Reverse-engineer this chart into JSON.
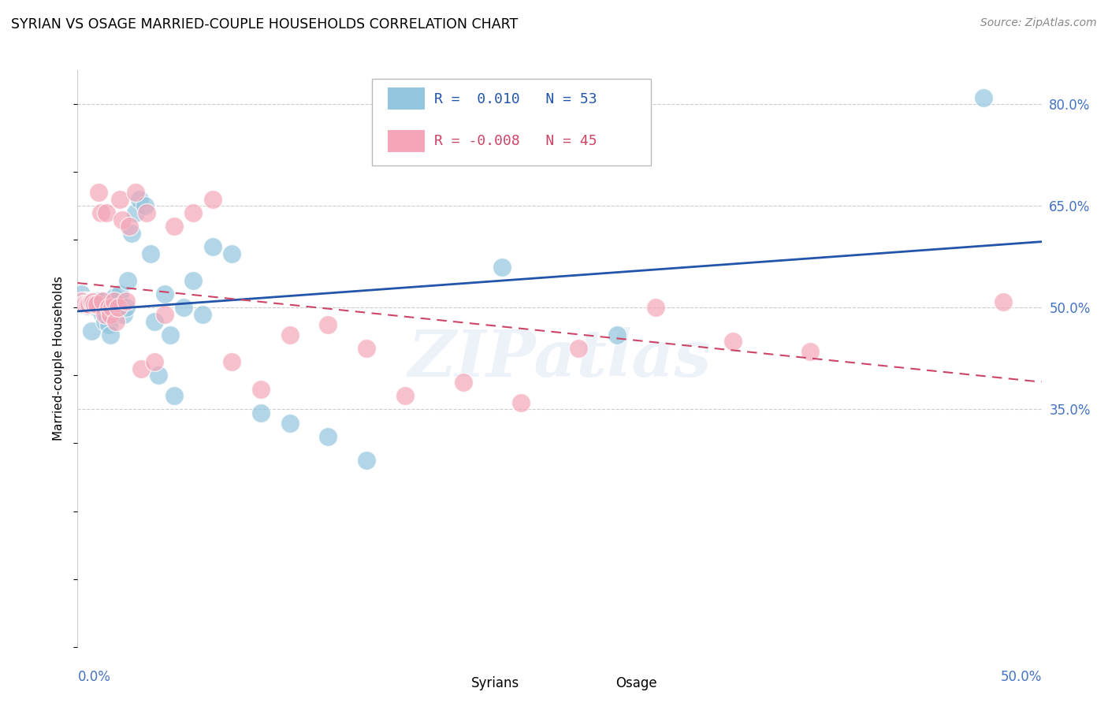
{
  "title": "SYRIAN VS OSAGE MARRIED-COUPLE HOUSEHOLDS CORRELATION CHART",
  "source": "Source: ZipAtlas.com",
  "ylabel": "Married-couple Households",
  "xlim": [
    0.0,
    0.5
  ],
  "ylim": [
    0.0,
    0.85
  ],
  "yticks": [
    0.35,
    0.5,
    0.65,
    0.8
  ],
  "ytick_labels": [
    "35.0%",
    "50.0%",
    "65.0%",
    "80.0%"
  ],
  "watermark": "ZIPatlas",
  "legend_blue_r": "0.010",
  "legend_blue_n": "53",
  "legend_pink_r": "-0.008",
  "legend_pink_n": "45",
  "blue_color": "#92C5DE",
  "pink_color": "#F4A6B8",
  "trendline_blue_color": "#2255AA",
  "trendline_pink_color": "#CC4466",
  "blue_x": [
    0.002,
    0.003,
    0.004,
    0.004,
    0.005,
    0.005,
    0.006,
    0.006,
    0.007,
    0.007,
    0.008,
    0.008,
    0.009,
    0.009,
    0.01,
    0.01,
    0.011,
    0.012,
    0.013,
    0.013,
    0.014,
    0.015,
    0.016,
    0.017,
    0.018,
    0.019,
    0.02,
    0.022,
    0.024,
    0.025,
    0.026,
    0.028,
    0.03,
    0.032,
    0.035,
    0.038,
    0.04,
    0.042,
    0.045,
    0.048,
    0.05,
    0.055,
    0.06,
    0.065,
    0.07,
    0.08,
    0.095,
    0.11,
    0.13,
    0.15,
    0.22,
    0.28,
    0.47
  ],
  "blue_y": [
    0.52,
    0.51,
    0.51,
    0.505,
    0.51,
    0.503,
    0.51,
    0.505,
    0.465,
    0.51,
    0.51,
    0.503,
    0.51,
    0.51,
    0.51,
    0.5,
    0.51,
    0.5,
    0.51,
    0.49,
    0.48,
    0.49,
    0.475,
    0.46,
    0.51,
    0.515,
    0.5,
    0.52,
    0.49,
    0.5,
    0.54,
    0.61,
    0.64,
    0.66,
    0.65,
    0.58,
    0.48,
    0.4,
    0.52,
    0.46,
    0.37,
    0.5,
    0.54,
    0.49,
    0.59,
    0.58,
    0.345,
    0.33,
    0.31,
    0.275,
    0.56,
    0.46,
    0.81
  ],
  "pink_x": [
    0.002,
    0.003,
    0.004,
    0.005,
    0.006,
    0.007,
    0.008,
    0.009,
    0.01,
    0.011,
    0.012,
    0.013,
    0.014,
    0.015,
    0.016,
    0.017,
    0.018,
    0.019,
    0.02,
    0.021,
    0.022,
    0.023,
    0.025,
    0.027,
    0.03,
    0.033,
    0.036,
    0.04,
    0.045,
    0.05,
    0.06,
    0.07,
    0.08,
    0.095,
    0.11,
    0.13,
    0.15,
    0.17,
    0.2,
    0.23,
    0.26,
    0.3,
    0.34,
    0.38,
    0.48
  ],
  "pink_y": [
    0.51,
    0.505,
    0.505,
    0.505,
    0.505,
    0.508,
    0.508,
    0.505,
    0.505,
    0.67,
    0.64,
    0.51,
    0.49,
    0.64,
    0.5,
    0.49,
    0.5,
    0.51,
    0.48,
    0.5,
    0.66,
    0.63,
    0.51,
    0.62,
    0.67,
    0.41,
    0.64,
    0.42,
    0.49,
    0.62,
    0.64,
    0.66,
    0.42,
    0.38,
    0.46,
    0.475,
    0.44,
    0.37,
    0.39,
    0.36,
    0.44,
    0.5,
    0.45,
    0.435,
    0.508
  ]
}
